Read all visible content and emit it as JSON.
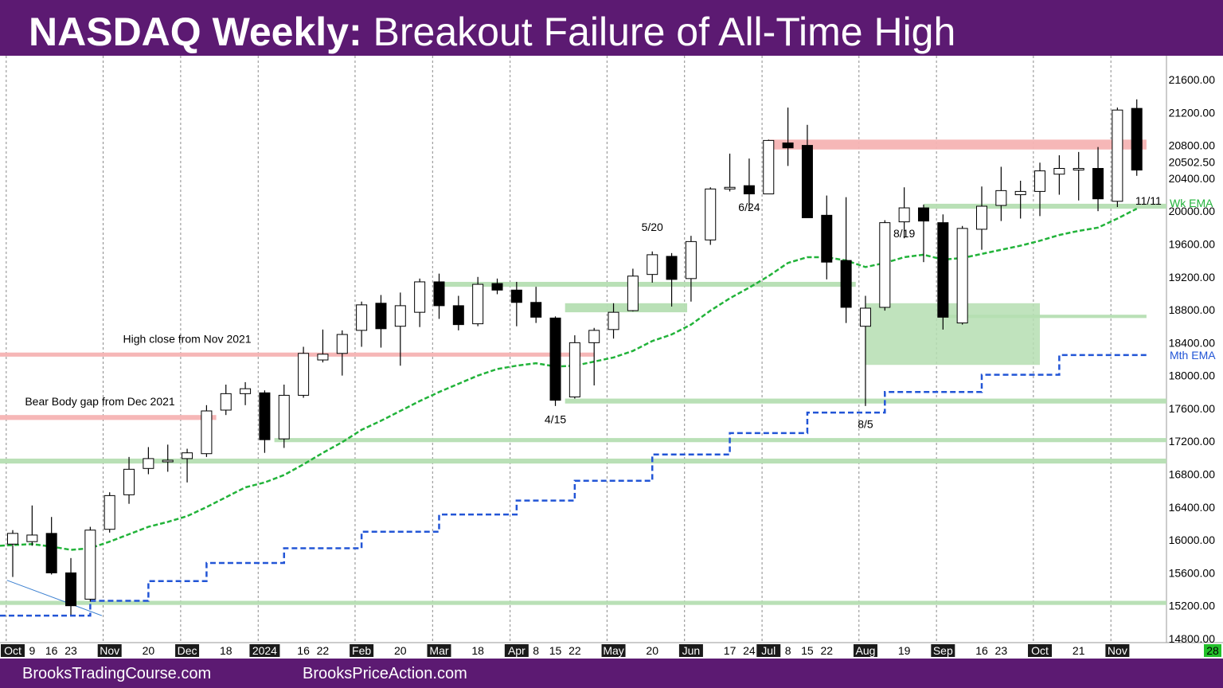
{
  "header": {
    "title_bold": "NASDAQ Weekly:",
    "title_rest": " Breakout Failure of All-Time High"
  },
  "footer": {
    "link1": "BrooksTradingCourse.com",
    "link2": "BrooksPriceAction.com"
  },
  "colors": {
    "background": "#5c1a72",
    "bull_body": "#ffffff",
    "bear_body": "#000000",
    "ema_weekly": "#22b33a",
    "ema_monthly": "#2255d6",
    "support_zone": "#b5deb2",
    "resistance_zone": "#f5b3b3"
  },
  "chart_data": {
    "type": "candlestick",
    "title": "NASDAQ Weekly: Breakout Failure of All-Time High",
    "ylim": [
      14800,
      21800
    ],
    "y_ticks": [
      14800,
      15200,
      15600,
      16000,
      16400,
      16800,
      17200,
      17600,
      18000,
      18400,
      18800,
      19200,
      19600,
      20000,
      20400,
      20800,
      21200,
      21600
    ],
    "y_tick_labels": [
      "14800.00",
      "15200.00",
      "15600.00",
      "16000.00",
      "16400.00",
      "16800.00",
      "17200.00",
      "17600.00",
      "18000.00",
      "18400.00",
      "18800.00",
      "19200.00",
      "19600.00",
      "20000.00",
      "20400.00",
      "20800.00",
      "21200.00",
      "21600.00"
    ],
    "last_price_label": "20502.50",
    "x_labels": [
      {
        "i": 0,
        "t": "Oct",
        "box": true
      },
      {
        "i": 1,
        "t": "9"
      },
      {
        "i": 2,
        "t": "16"
      },
      {
        "i": 3,
        "t": "23"
      },
      {
        "i": 5,
        "t": "Nov",
        "box": true
      },
      {
        "i": 7,
        "t": "20"
      },
      {
        "i": 9,
        "t": "Dec",
        "box": true
      },
      {
        "i": 11,
        "t": "18"
      },
      {
        "i": 13,
        "t": "2024",
        "box": true
      },
      {
        "i": 15,
        "t": "16"
      },
      {
        "i": 16,
        "t": "22"
      },
      {
        "i": 18,
        "t": "Feb",
        "box": true
      },
      {
        "i": 20,
        "t": "20"
      },
      {
        "i": 22,
        "t": "Mar",
        "box": true
      },
      {
        "i": 24,
        "t": "18"
      },
      {
        "i": 26,
        "t": "Apr",
        "box": true
      },
      {
        "i": 27,
        "t": "8"
      },
      {
        "i": 28,
        "t": "15"
      },
      {
        "i": 29,
        "t": "22"
      },
      {
        "i": 31,
        "t": "May",
        "box": true
      },
      {
        "i": 33,
        "t": "20"
      },
      {
        "i": 35,
        "t": "Jun",
        "box": true
      },
      {
        "i": 37,
        "t": "17"
      },
      {
        "i": 38,
        "t": "24"
      },
      {
        "i": 39,
        "t": "Jul",
        "box": true
      },
      {
        "i": 40,
        "t": "8"
      },
      {
        "i": 41,
        "t": "15"
      },
      {
        "i": 42,
        "t": "22"
      },
      {
        "i": 44,
        "t": "Aug",
        "box": true
      },
      {
        "i": 46,
        "t": "19"
      },
      {
        "i": 48,
        "t": "Sep",
        "box": true
      },
      {
        "i": 50,
        "t": "16"
      },
      {
        "i": 51,
        "t": "23"
      },
      {
        "i": 53,
        "t": "Oct",
        "box": true
      },
      {
        "i": 55,
        "t": "21"
      },
      {
        "i": 57,
        "t": "Nov",
        "box": true
      }
    ],
    "x_end_label": "28",
    "candles": [
      {
        "o": 15950,
        "h": 16120,
        "l": 15550,
        "c": 16080
      },
      {
        "o": 15980,
        "h": 16420,
        "l": 15930,
        "c": 16060
      },
      {
        "o": 16080,
        "h": 16280,
        "l": 15580,
        "c": 15600
      },
      {
        "o": 15600,
        "h": 15780,
        "l": 15090,
        "c": 15200
      },
      {
        "o": 15280,
        "h": 16160,
        "l": 15250,
        "c": 16120
      },
      {
        "o": 16130,
        "h": 16580,
        "l": 16090,
        "c": 16540
      },
      {
        "o": 16550,
        "h": 17010,
        "l": 16440,
        "c": 16860
      },
      {
        "o": 16870,
        "h": 17130,
        "l": 16800,
        "c": 16990
      },
      {
        "o": 16960,
        "h": 17160,
        "l": 16830,
        "c": 16970
      },
      {
        "o": 16990,
        "h": 17110,
        "l": 16700,
        "c": 17060
      },
      {
        "o": 17050,
        "h": 17640,
        "l": 17010,
        "c": 17570
      },
      {
        "o": 17580,
        "h": 17890,
        "l": 17520,
        "c": 17780
      },
      {
        "o": 17780,
        "h": 17920,
        "l": 17640,
        "c": 17840
      },
      {
        "o": 17790,
        "h": 17820,
        "l": 17060,
        "c": 17220
      },
      {
        "o": 17230,
        "h": 17890,
        "l": 17120,
        "c": 17760
      },
      {
        "o": 17760,
        "h": 18350,
        "l": 17730,
        "c": 18270
      },
      {
        "o": 18190,
        "h": 18560,
        "l": 18160,
        "c": 18260
      },
      {
        "o": 18270,
        "h": 18550,
        "l": 18000,
        "c": 18500
      },
      {
        "o": 18550,
        "h": 18900,
        "l": 18350,
        "c": 18860
      },
      {
        "o": 18880,
        "h": 18980,
        "l": 18340,
        "c": 18570
      },
      {
        "o": 18600,
        "h": 19010,
        "l": 18120,
        "c": 18850
      },
      {
        "o": 18770,
        "h": 19180,
        "l": 18590,
        "c": 19140
      },
      {
        "o": 19140,
        "h": 19240,
        "l": 18690,
        "c": 18850
      },
      {
        "o": 18850,
        "h": 18970,
        "l": 18550,
        "c": 18620
      },
      {
        "o": 18630,
        "h": 19200,
        "l": 18600,
        "c": 19110
      },
      {
        "o": 19120,
        "h": 19180,
        "l": 18990,
        "c": 19040
      },
      {
        "o": 19040,
        "h": 19140,
        "l": 18600,
        "c": 18890
      },
      {
        "o": 18890,
        "h": 19080,
        "l": 18640,
        "c": 18710
      },
      {
        "o": 18700,
        "h": 18720,
        "l": 17630,
        "c": 17700
      },
      {
        "o": 17740,
        "h": 18490,
        "l": 17720,
        "c": 18400
      },
      {
        "o": 18400,
        "h": 18580,
        "l": 17880,
        "c": 18550
      },
      {
        "o": 18560,
        "h": 18880,
        "l": 18450,
        "c": 18770
      },
      {
        "o": 18790,
        "h": 19300,
        "l": 18780,
        "c": 19210
      },
      {
        "o": 19230,
        "h": 19510,
        "l": 19130,
        "c": 19470
      },
      {
        "o": 19450,
        "h": 19490,
        "l": 18840,
        "c": 19170
      },
      {
        "o": 19180,
        "h": 19700,
        "l": 18900,
        "c": 19630
      },
      {
        "o": 19650,
        "h": 20290,
        "l": 19590,
        "c": 20270
      },
      {
        "o": 20270,
        "h": 20700,
        "l": 20240,
        "c": 20290
      },
      {
        "o": 20310,
        "h": 20640,
        "l": 20030,
        "c": 20210
      },
      {
        "o": 20210,
        "h": 20870,
        "l": 20210,
        "c": 20860
      },
      {
        "o": 20830,
        "h": 21260,
        "l": 20550,
        "c": 20770
      },
      {
        "o": 20800,
        "h": 21050,
        "l": 19930,
        "c": 19920
      },
      {
        "o": 19950,
        "h": 20190,
        "l": 19170,
        "c": 19380
      },
      {
        "o": 19400,
        "h": 20170,
        "l": 18640,
        "c": 18830
      },
      {
        "o": 18600,
        "h": 18970,
        "l": 17630,
        "c": 18820
      },
      {
        "o": 18830,
        "h": 19890,
        "l": 18790,
        "c": 19860
      },
      {
        "o": 19870,
        "h": 20290,
        "l": 19670,
        "c": 20040
      },
      {
        "o": 20040,
        "h": 20080,
        "l": 19380,
        "c": 19880
      },
      {
        "o": 19860,
        "h": 19960,
        "l": 18560,
        "c": 18710
      },
      {
        "o": 18640,
        "h": 19820,
        "l": 18620,
        "c": 19790
      },
      {
        "o": 19780,
        "h": 20300,
        "l": 19530,
        "c": 20060
      },
      {
        "o": 20070,
        "h": 20540,
        "l": 19880,
        "c": 20250
      },
      {
        "o": 20200,
        "h": 20370,
        "l": 19910,
        "c": 20240
      },
      {
        "o": 20240,
        "h": 20590,
        "l": 19940,
        "c": 20490
      },
      {
        "o": 20450,
        "h": 20680,
        "l": 20200,
        "c": 20520
      },
      {
        "o": 20510,
        "h": 20720,
        "l": 20130,
        "c": 20520
      },
      {
        "o": 20520,
        "h": 20780,
        "l": 20000,
        "c": 20150
      },
      {
        "o": 20120,
        "h": 21260,
        "l": 20050,
        "c": 21230
      },
      {
        "o": 21250,
        "h": 21360,
        "l": 20430,
        "c": 20500
      }
    ],
    "weekly_ema": {
      "name": "Wk EMA",
      "values": [
        15930,
        15950,
        15920,
        15880,
        15900,
        15980,
        16070,
        16160,
        16220,
        16290,
        16400,
        16520,
        16640,
        16700,
        16790,
        16920,
        17060,
        17190,
        17340,
        17450,
        17570,
        17690,
        17800,
        17900,
        18000,
        18080,
        18120,
        18150,
        18110,
        18120,
        18170,
        18220,
        18300,
        18420,
        18500,
        18620,
        18790,
        18940,
        19070,
        19210,
        19370,
        19440,
        19440,
        19400,
        19320,
        19370,
        19440,
        19470,
        19410,
        19430,
        19480,
        19530,
        19580,
        19640,
        19710,
        19760,
        19800,
        19910,
        20030
      ],
      "label_y": 20100
    },
    "monthly_ema": {
      "name": "Mth EMA",
      "steps": [
        {
          "i0": 0,
          "i1": 4,
          "v": 15080
        },
        {
          "i0": 4,
          "i1": 7,
          "v": 15260
        },
        {
          "i0": 7,
          "i1": 10,
          "v": 15500
        },
        {
          "i0": 10,
          "i1": 14,
          "v": 15720
        },
        {
          "i0": 14,
          "i1": 18,
          "v": 15900
        },
        {
          "i0": 18,
          "i1": 22,
          "v": 16100
        },
        {
          "i0": 22,
          "i1": 26,
          "v": 16310
        },
        {
          "i0": 26,
          "i1": 29,
          "v": 16480
        },
        {
          "i0": 29,
          "i1": 33,
          "v": 16720
        },
        {
          "i0": 33,
          "i1": 37,
          "v": 17040
        },
        {
          "i0": 37,
          "i1": 41,
          "v": 17300
        },
        {
          "i0": 41,
          "i1": 45,
          "v": 17550
        },
        {
          "i0": 45,
          "i1": 50,
          "v": 17800
        },
        {
          "i0": 50,
          "i1": 54,
          "v": 18010
        },
        {
          "i0": 54,
          "i1": 59,
          "v": 18250
        }
      ]
    },
    "zones": [
      {
        "kind": "resistance",
        "x0": 0,
        "x1": 10.5,
        "y_low": 17460,
        "y_high": 17520
      },
      {
        "kind": "resistance",
        "x0": 0,
        "x1": 30,
        "y_low": 18230,
        "y_high": 18280
      },
      {
        "kind": "resistance",
        "x0": 39,
        "x1": 58.5,
        "y_low": 20750,
        "y_high": 20870
      },
      {
        "kind": "support",
        "x0": 0,
        "x1": 60,
        "y_low": 15210,
        "y_high": 15260
      },
      {
        "kind": "support",
        "x0": 0,
        "x1": 60,
        "y_low": 16930,
        "y_high": 16990
      },
      {
        "kind": "support",
        "x0": 13.5,
        "x1": 60,
        "y_low": 17190,
        "y_high": 17240
      },
      {
        "kind": "support",
        "x0": 28.5,
        "x1": 60,
        "y_low": 17660,
        "y_high": 17720
      },
      {
        "kind": "support",
        "x0": 28.5,
        "x1": 34.8,
        "y_low": 18770,
        "y_high": 18880
      },
      {
        "kind": "support",
        "x0": 22,
        "x1": 43.5,
        "y_low": 19080,
        "y_high": 19140
      },
      {
        "kind": "support",
        "x0": 48,
        "x1": 58.5,
        "y_low": 18700,
        "y_high": 18740
      },
      {
        "kind": "support_box",
        "x0": 44,
        "x1": 53,
        "y_low": 18130,
        "y_high": 18880
      },
      {
        "kind": "support",
        "x0": 47,
        "x1": 60,
        "y_low": 20030,
        "y_high": 20090
      }
    ],
    "annotations": [
      {
        "text": "High close from Nov 2021",
        "i": 9,
        "y": 18400
      },
      {
        "text": "Bear Body gap from Dec 2021",
        "i": 4.5,
        "y": 17640
      },
      {
        "text": "4/15",
        "i": 28,
        "y": 17420
      },
      {
        "text": "5/20",
        "i": 33,
        "y": 19760
      },
      {
        "text": "6/24",
        "i": 38,
        "y": 20000
      },
      {
        "text": "8/19",
        "i": 46,
        "y": 19680
      },
      {
        "text": "8/5",
        "i": 44,
        "y": 17360
      },
      {
        "text": "11/11",
        "i": 58.6,
        "y": 20080
      }
    ],
    "trendline": {
      "i0": -0.3,
      "v0": 15510,
      "i1": 4.6,
      "v1": 15080
    }
  }
}
